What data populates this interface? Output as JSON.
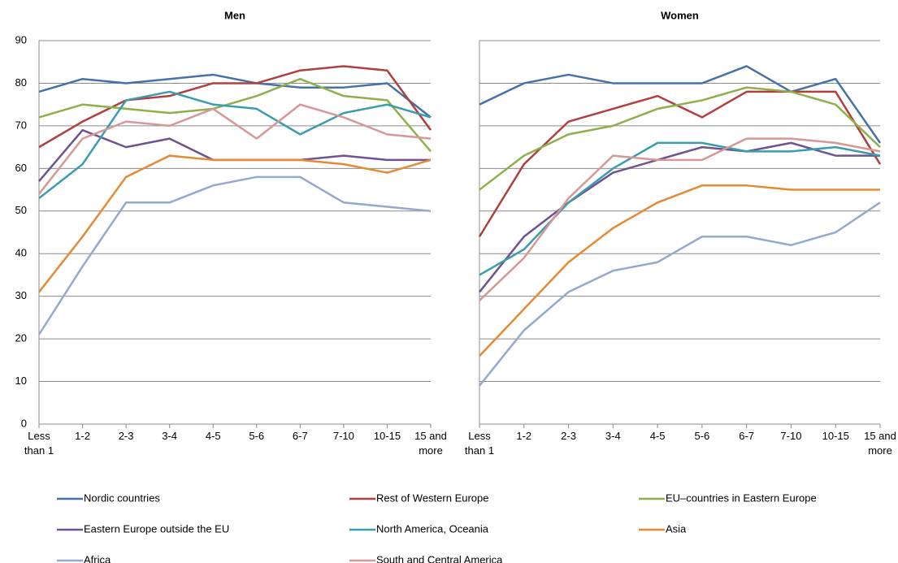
{
  "chart_data": [
    {
      "type": "line",
      "title": "Men",
      "categories": [
        "Less than 1",
        "1-2",
        "2-3",
        "3-4",
        "4-5",
        "5-6",
        "6-7",
        "7-10",
        "10-15",
        "15 and more"
      ],
      "ylim": [
        0,
        90
      ],
      "yticks": [
        0,
        10,
        20,
        30,
        40,
        50,
        60,
        70,
        80,
        90
      ],
      "grid": true,
      "show_ytick_labels": true,
      "series": [
        {
          "name": "Nordic countries",
          "color": "#4472a8",
          "values": [
            78,
            81,
            80,
            81,
            82,
            80,
            79,
            79,
            80,
            72
          ]
        },
        {
          "name": "Rest of Western Europe",
          "color": "#b0403d",
          "values": [
            65,
            71,
            76,
            77,
            80,
            80,
            83,
            84,
            83,
            69
          ]
        },
        {
          "name": "EU–countries  in Eastern Europe",
          "color": "#8db04a",
          "values": [
            72,
            75,
            74,
            73,
            74,
            77,
            81,
            77,
            76,
            64
          ]
        },
        {
          "name": "Eastern Europe outside the EU",
          "color": "#6f5290",
          "values": [
            57,
            69,
            65,
            67,
            62,
            62,
            62,
            63,
            62,
            62
          ]
        },
        {
          "name": "North America, Oceania",
          "color": "#3b9cb0",
          "values": [
            53,
            61,
            76,
            78,
            75,
            74,
            68,
            73,
            75,
            72
          ]
        },
        {
          "name": "Asia",
          "color": "#e58a34",
          "values": [
            31,
            44,
            58,
            63,
            62,
            62,
            62,
            61,
            59,
            62
          ]
        },
        {
          "name": "Africa",
          "color": "#93a9cf",
          "values": [
            21,
            37,
            52,
            52,
            56,
            58,
            58,
            52,
            51,
            50
          ]
        },
        {
          "name": "South and Central America",
          "color": "#d69795",
          "values": [
            54,
            67,
            71,
            70,
            74,
            67,
            75,
            72,
            68,
            67
          ]
        }
      ]
    },
    {
      "type": "line",
      "title": "Women",
      "categories": [
        "Less than 1",
        "1-2",
        "2-3",
        "3-4",
        "4-5",
        "5-6",
        "6-7",
        "7-10",
        "10-15",
        "15 and more"
      ],
      "ylim": [
        0,
        90
      ],
      "yticks": [
        0,
        10,
        20,
        30,
        40,
        50,
        60,
        70,
        80,
        90
      ],
      "grid": true,
      "show_ytick_labels": false,
      "series": [
        {
          "values": [
            75,
            80,
            82,
            80,
            80,
            80,
            84,
            78,
            81,
            66
          ]
        },
        {
          "values": [
            44,
            61,
            71,
            74,
            77,
            72,
            78,
            78,
            78,
            61
          ]
        },
        {
          "values": [
            55,
            63,
            68,
            70,
            74,
            76,
            79,
            78,
            75,
            65
          ]
        },
        {
          "values": [
            31,
            44,
            52,
            59,
            62,
            65,
            64,
            66,
            63,
            63
          ]
        },
        {
          "values": [
            35,
            41,
            52,
            60,
            66,
            66,
            64,
            64,
            65,
            63
          ]
        },
        {
          "values": [
            16,
            27,
            38,
            46,
            52,
            56,
            56,
            55,
            55,
            55
          ]
        },
        {
          "values": [
            9,
            22,
            31,
            36,
            38,
            44,
            44,
            42,
            45,
            52
          ]
        },
        {
          "values": [
            29,
            39,
            53,
            63,
            62,
            62,
            67,
            67,
            66,
            64
          ]
        }
      ]
    }
  ]
}
